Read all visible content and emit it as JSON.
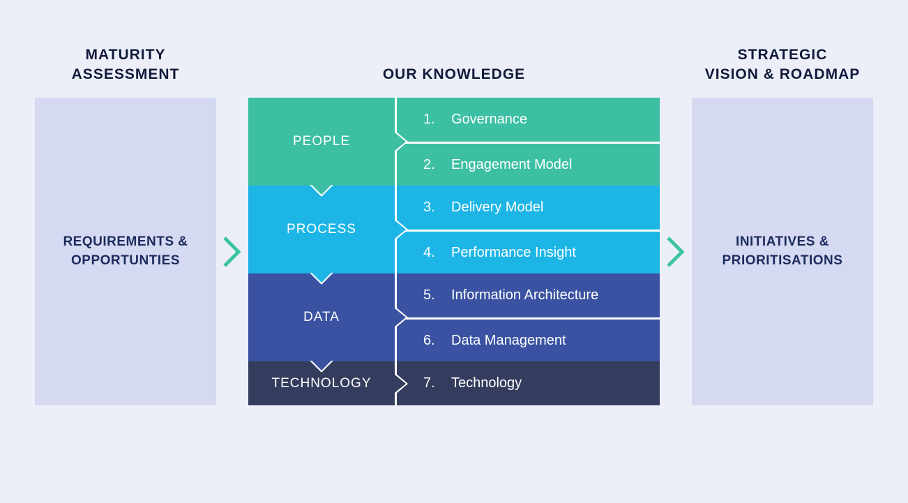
{
  "colors": {
    "page_bg": "#edeff8",
    "side_bg": "#d5d9f1",
    "header_text": "#101a3a",
    "side_text": "#1c2b5d",
    "arrow": "#3cc3a2"
  },
  "headers": {
    "left_line1": "MATURITY",
    "left_line2": "ASSESSMENT",
    "mid": "OUR KNOWLEDGE",
    "right_line1": "STRATEGIC",
    "right_line2": "VISION & ROADMAP"
  },
  "left_panel": {
    "line1": "REQUIREMENTS &",
    "line2": "OPPORTUNTIES"
  },
  "right_panel": {
    "line1": "INITIATIVES &",
    "line2": "PRIORITISATIONS"
  },
  "groups": [
    {
      "label": "PEOPLE",
      "color": "#3cbfa2",
      "items": [
        {
          "num": "1.",
          "label": "Governance"
        },
        {
          "num": "2.",
          "label": "Engagement Model"
        }
      ]
    },
    {
      "label": "PROCESS",
      "color": "#1db5e6",
      "items": [
        {
          "num": "3.",
          "label": "Delivery Model"
        },
        {
          "num": "4.",
          "label": "Performance Insight"
        }
      ]
    },
    {
      "label": "DATA",
      "color": "#3a52a1",
      "items": [
        {
          "num": "5.",
          "label": "Information Architecture"
        },
        {
          "num": "6.",
          "label": "Data Management"
        }
      ]
    },
    {
      "label": "TECHNOLOGY",
      "color": "#353d5e",
      "items": [
        {
          "num": "7.",
          "label": "Technology"
        }
      ]
    }
  ]
}
